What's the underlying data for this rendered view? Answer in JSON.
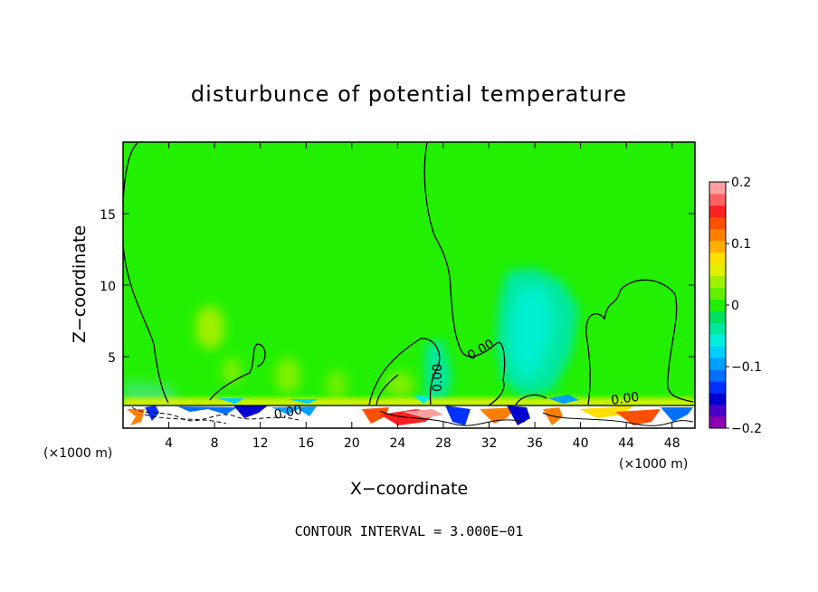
{
  "chart_data": {
    "type": "heatmap",
    "title": "disturbunce of potential temperature",
    "xlabel": "X−coordinate",
    "ylabel": "Z−coordinate",
    "x_unit": "(×1000 m)",
    "y_unit": "(×1000 m)",
    "xlim": [
      0,
      50
    ],
    "ylim": [
      0,
      20
    ],
    "x_ticks": [
      4,
      8,
      12,
      16,
      20,
      24,
      28,
      32,
      36,
      40,
      44,
      48
    ],
    "y_ticks": [
      5,
      10,
      15
    ],
    "contour_labels": [
      "0.00",
      "0.00",
      "0.00",
      "0.00"
    ],
    "note": "CONTOUR INTERVAL = 3.000E−01",
    "colorbar": {
      "min": -0.2,
      "max": 0.2,
      "tick_values": [
        0.2,
        0.1,
        0,
        -0.1,
        -0.2
      ],
      "tick_labels": [
        "0.2",
        "0.1",
        "0",
        "−0.1",
        "−0.2"
      ],
      "colors": [
        "#8b00b0",
        "#4b00c8",
        "#0000d0",
        "#0030ff",
        "#0070ff",
        "#00a0ff",
        "#00d0ff",
        "#00f0e0",
        "#00e8a0",
        "#00e060",
        "#20f000",
        "#60f000",
        "#a0f000",
        "#e0f000",
        "#ffe000",
        "#ffb000",
        "#ff8000",
        "#ff5000",
        "#ff2020",
        "#ff6060",
        "#ffa0a0"
      ]
    }
  }
}
